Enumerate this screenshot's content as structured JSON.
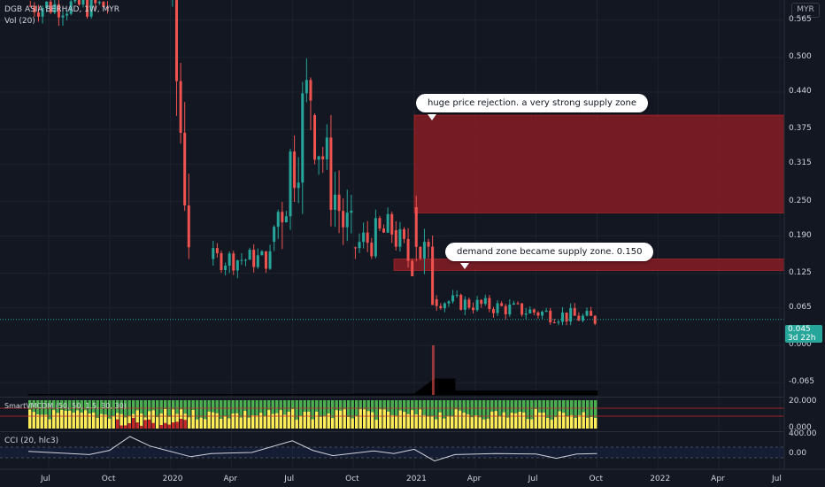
{
  "header": {
    "symbol_line": "DGB ASIA BERHAD, 1W, MYR",
    "volume_label": "Vol (20)",
    "currency": "MYR"
  },
  "colors": {
    "background": "#131722",
    "up": "#26a69a",
    "down": "#ef5350",
    "supply_zone": "#8b1c24",
    "grid": "#1e222d"
  },
  "price_axis": {
    "ticks": [
      "0.565",
      "0.500",
      "0.440",
      "0.375",
      "0.315",
      "0.250",
      "0.190",
      "0.125",
      "0.065",
      "0.000",
      "-0.065"
    ],
    "current_price": "0.045",
    "countdown": "3d 22h"
  },
  "time_axis": {
    "ticks": [
      "Jul",
      "Oct",
      "2020",
      "Apr",
      "Jul",
      "Oct",
      "2021",
      "Apr",
      "Jul",
      "Oct",
      "2022",
      "Apr",
      "Jul"
    ]
  },
  "annotations": {
    "note1": "huge price rejection. a very strong supply zone",
    "note2": "demand zone became supply zone. 0.150"
  },
  "indicators": {
    "smart_label": "SmartVMCDM (50, 50, 1.5, 30, 30)",
    "smart_ticks": [
      "20.000",
      "0.000"
    ],
    "cci_label": "CCI (20, hlc3)",
    "cci_ticks": [
      "400.00",
      "0.00"
    ]
  },
  "chart_data": {
    "type": "candlestick",
    "title": "DGB ASIA BERHAD, 1W, MYR",
    "ylim": [
      -0.08,
      0.6
    ],
    "x_range": [
      "2019-06",
      "2022-07"
    ],
    "supply_zones": [
      {
        "from": "2021-01",
        "to": "open",
        "low": 0.23,
        "high": 0.4
      },
      {
        "from": "2020-12",
        "to": "open",
        "low": 0.13,
        "high": 0.15
      }
    ],
    "segments": [
      {
        "from": "2019-06",
        "to": "2019-10",
        "open": 0.59,
        "close": 0.59,
        "min": 0.54,
        "max": 0.64
      },
      {
        "from": "2020-01",
        "to": "2020-02",
        "open": 0.62,
        "close": 0.22,
        "min": 0.15,
        "max": 0.63
      },
      {
        "from": "2020-03",
        "to": "2020-06",
        "open": 0.15,
        "close": 0.15,
        "min": 0.11,
        "max": 0.2
      },
      {
        "from": "2020-06",
        "to": "2020-08",
        "open": 0.18,
        "close": 0.45,
        "min": 0.14,
        "max": 0.53
      },
      {
        "from": "2020-08",
        "to": "2020-10",
        "open": 0.4,
        "close": 0.17,
        "min": 0.15,
        "max": 0.44
      },
      {
        "from": "2020-10",
        "to": "2020-12",
        "open": 0.17,
        "close": 0.2,
        "min": 0.15,
        "max": 0.3
      },
      {
        "from": "2020-12",
        "to": "2021-01",
        "open": 0.2,
        "close": 0.14,
        "min": 0.12,
        "max": 0.26
      },
      {
        "from": "2021-01",
        "to": "2021-02",
        "open": 0.24,
        "close": 0.08,
        "min": 0.07,
        "max": 0.4
      },
      {
        "from": "2021-02",
        "to": "2021-10",
        "open": 0.08,
        "close": 0.045,
        "min": 0.035,
        "max": 0.1
      }
    ],
    "volume_series": [
      {
        "from": "2019-06",
        "to": "2020-10",
        "level": 0.02
      },
      {
        "from": "2020-10",
        "to": "2021-01",
        "level": 0.05
      },
      {
        "from": "2021-02",
        "to": "2021-03",
        "level": 1.0
      },
      {
        "from": "2021-03",
        "to": "2021-10",
        "level": 0.25
      }
    ],
    "cci_series": [
      {
        "x": "2019-06",
        "y": 20
      },
      {
        "x": "2019-09",
        "y": -40
      },
      {
        "x": "2019-10",
        "y": 40
      },
      {
        "x": "2019-11",
        "y": 300
      },
      {
        "x": "2019-12",
        "y": 120
      },
      {
        "x": "2020-02",
        "y": -80
      },
      {
        "x": "2020-03",
        "y": -20
      },
      {
        "x": "2020-05",
        "y": 0
      },
      {
        "x": "2020-07",
        "y": 220
      },
      {
        "x": "2020-08",
        "y": 40
      },
      {
        "x": "2020-09",
        "y": -60
      },
      {
        "x": "2020-11",
        "y": 30
      },
      {
        "x": "2020-12",
        "y": -20
      },
      {
        "x": "2021-01",
        "y": 60
      },
      {
        "x": "2021-02",
        "y": -160
      },
      {
        "x": "2021-03",
        "y": -40
      },
      {
        "x": "2021-05",
        "y": -20
      },
      {
        "x": "2021-07",
        "y": -30
      },
      {
        "x": "2021-08",
        "y": -110
      },
      {
        "x": "2021-09",
        "y": -30
      },
      {
        "x": "2021-10",
        "y": -20
      }
    ]
  }
}
